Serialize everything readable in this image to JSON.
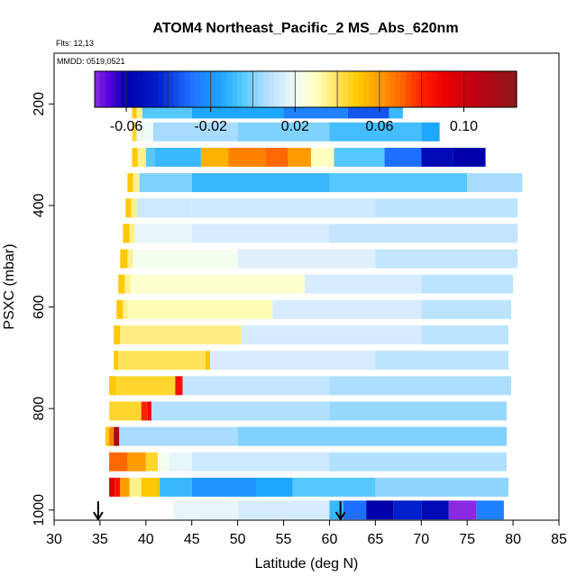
{
  "chart_data": {
    "type": "heatmap",
    "title": "ATOM4 Northeast_Pacific_2 MS_Abs_620nm",
    "subtitle_lines": [
      "Flts: 12,13",
      "MMDD: 0519,0521"
    ],
    "xlabel": "Latitude (deg N)",
    "ylabel": "PSXC (mbar)",
    "xlim": [
      30,
      85
    ],
    "ylim": [
      1020,
      100
    ],
    "xticks": [
      30,
      35,
      40,
      45,
      50,
      55,
      60,
      65,
      70,
      75,
      80,
      85
    ],
    "yticks": [
      200,
      400,
      600,
      800,
      1000
    ],
    "colorbar": {
      "range": [
        -0.075,
        0.125
      ],
      "ticks": [
        -0.06,
        -0.02,
        0.02,
        0.06,
        0.1
      ],
      "tick_labels": [
        "-0.06",
        "-0.02",
        "0.02",
        "0.06",
        "0.10"
      ],
      "major_bounds": [
        -0.075,
        -0.06,
        -0.04,
        -0.02,
        0.0,
        0.02,
        0.04,
        0.06,
        0.08,
        0.1,
        0.125
      ],
      "stops": [
        {
          "v": -0.075,
          "c": "#8a2be2"
        },
        {
          "v": -0.068,
          "c": "#5500dd"
        },
        {
          "v": -0.06,
          "c": "#0000aa"
        },
        {
          "v": -0.045,
          "c": "#0020cc"
        },
        {
          "v": -0.03,
          "c": "#1e6fff"
        },
        {
          "v": -0.015,
          "c": "#1ea7ff"
        },
        {
          "v": -0.005,
          "c": "#55c8ff"
        },
        {
          "v": 0.005,
          "c": "#a8dcff"
        },
        {
          "v": 0.015,
          "c": "#dcefff"
        },
        {
          "v": 0.022,
          "c": "#f5fff0"
        },
        {
          "v": 0.03,
          "c": "#ffffc0"
        },
        {
          "v": 0.04,
          "c": "#ffe45a"
        },
        {
          "v": 0.05,
          "c": "#ffc800"
        },
        {
          "v": 0.06,
          "c": "#ff9d00"
        },
        {
          "v": 0.07,
          "c": "#ff6800"
        },
        {
          "v": 0.08,
          "c": "#ff2200"
        },
        {
          "v": 0.09,
          "c": "#ee0000"
        },
        {
          "v": 0.105,
          "c": "#c00010"
        },
        {
          "v": 0.125,
          "c": "#8a1818"
        }
      ]
    },
    "arrows_lat": [
      34.8,
      61.2
    ],
    "rows": [
      {
        "p": 210,
        "segments": [
          [
            38.5,
            39.0,
            0.05
          ],
          [
            39.0,
            39.6,
            0.035
          ],
          [
            39.6,
            45,
            -0.005
          ],
          [
            45,
            55,
            -0.015
          ],
          [
            55,
            62,
            -0.025
          ],
          [
            62,
            66.5,
            -0.035
          ],
          [
            66.5,
            68,
            -0.01
          ]
        ]
      },
      {
        "p": 255,
        "segments": [
          [
            38.5,
            39.0,
            0.045
          ],
          [
            39.0,
            40.8,
            0.02
          ],
          [
            40.8,
            50,
            0.005
          ],
          [
            50,
            60,
            0.0
          ],
          [
            60,
            70,
            -0.008
          ],
          [
            70,
            72,
            -0.015
          ]
        ]
      },
      {
        "p": 305,
        "segments": [
          [
            38.5,
            39.1,
            0.05
          ],
          [
            39.1,
            40.0,
            0.035
          ],
          [
            40.0,
            41.0,
            -0.005
          ],
          [
            41.0,
            46.0,
            -0.01
          ],
          [
            46.0,
            49.0,
            0.055
          ],
          [
            49.0,
            53.0,
            0.065
          ],
          [
            53.0,
            55.5,
            0.07
          ],
          [
            55.5,
            58.0,
            0.06
          ],
          [
            58.0,
            60.5,
            0.03
          ],
          [
            60.5,
            66.0,
            -0.005
          ],
          [
            66.0,
            70.0,
            -0.03
          ],
          [
            70.0,
            73.5,
            -0.055
          ],
          [
            73.5,
            77,
            -0.06
          ]
        ]
      },
      {
        "p": 355,
        "segments": [
          [
            38.0,
            38.6,
            0.05
          ],
          [
            38.6,
            39.3,
            0.035
          ],
          [
            39.3,
            45,
            0.0
          ],
          [
            45,
            60,
            -0.01
          ],
          [
            60,
            75,
            -0.005
          ],
          [
            75,
            81,
            0.005
          ]
        ]
      },
      {
        "p": 405,
        "segments": [
          [
            37.8,
            38.4,
            0.05
          ],
          [
            38.4,
            39.0,
            0.035
          ],
          [
            39.0,
            45,
            0.012
          ],
          [
            45,
            65,
            0.012
          ],
          [
            65,
            80.5,
            0.009
          ]
        ]
      },
      {
        "p": 455,
        "segments": [
          [
            37.5,
            38.2,
            0.05
          ],
          [
            38.2,
            38.8,
            0.035
          ],
          [
            38.8,
            45,
            0.018
          ],
          [
            45,
            60,
            0.014
          ],
          [
            60,
            80.5,
            0.01
          ]
        ]
      },
      {
        "p": 505,
        "segments": [
          [
            37.2,
            38.0,
            0.05
          ],
          [
            38.0,
            38.6,
            0.035
          ],
          [
            38.6,
            50,
            0.022
          ],
          [
            50,
            65,
            0.016
          ],
          [
            65,
            80.5,
            0.01
          ]
        ]
      },
      {
        "p": 555,
        "segments": [
          [
            37.0,
            37.7,
            0.05
          ],
          [
            37.7,
            38.3,
            0.035
          ],
          [
            38.3,
            57.3,
            0.028
          ],
          [
            57.3,
            70,
            0.014
          ],
          [
            70,
            80.0,
            0.009
          ]
        ]
      },
      {
        "p": 605,
        "segments": [
          [
            36.8,
            37.5,
            0.05
          ],
          [
            37.5,
            38.0,
            0.035
          ],
          [
            38.0,
            53.8,
            0.031
          ],
          [
            53.8,
            70,
            0.014
          ],
          [
            70,
            79.8,
            0.009
          ]
        ]
      },
      {
        "p": 655,
        "segments": [
          [
            36.5,
            37.2,
            0.05
          ],
          [
            37.2,
            50.4,
            0.036
          ],
          [
            50.4,
            70,
            0.014
          ],
          [
            70,
            79.5,
            0.009
          ]
        ]
      },
      {
        "p": 705,
        "segments": [
          [
            36.5,
            37.0,
            0.05
          ],
          [
            37.0,
            46.5,
            0.04
          ],
          [
            46.5,
            47.0,
            0.05
          ],
          [
            47.0,
            65,
            0.014
          ],
          [
            65,
            79.5,
            0.009
          ]
        ]
      },
      {
        "p": 755,
        "segments": [
          [
            36.0,
            36.8,
            0.05
          ],
          [
            36.8,
            43.2,
            0.045
          ],
          [
            43.2,
            44.0,
            0.085
          ],
          [
            44.0,
            60,
            0.01
          ],
          [
            60,
            79.8,
            0.006
          ]
        ]
      },
      {
        "p": 805,
        "segments": [
          [
            36.0,
            39.5,
            0.045
          ],
          [
            39.5,
            40.2,
            0.08
          ],
          [
            40.2,
            40.6,
            0.09
          ],
          [
            40.6,
            60,
            0.007
          ],
          [
            60,
            79.3,
            0.003
          ]
        ]
      },
      {
        "p": 855,
        "segments": [
          [
            35.6,
            36.0,
            0.05
          ],
          [
            36.0,
            36.5,
            0.065
          ],
          [
            36.5,
            37.1,
            0.115
          ],
          [
            37.1,
            50,
            0.005
          ],
          [
            50,
            79.3,
            0.0
          ]
        ]
      },
      {
        "p": 905,
        "segments": [
          [
            36.0,
            38.0,
            0.07
          ],
          [
            38.0,
            40.0,
            0.06
          ],
          [
            40.0,
            41.3,
            0.045
          ],
          [
            41.3,
            42.5,
            0.022
          ],
          [
            42.5,
            45,
            0.018
          ],
          [
            45,
            60,
            0.012
          ],
          [
            60,
            79.3,
            0.007
          ]
        ]
      },
      {
        "p": 955,
        "segments": [
          [
            36.0,
            36.6,
            0.095
          ],
          [
            36.6,
            37.2,
            0.085
          ],
          [
            37.2,
            38.2,
            0.06
          ],
          [
            38.2,
            39.5,
            0.035
          ],
          [
            39.5,
            41.5,
            0.05
          ],
          [
            41.5,
            45,
            -0.01
          ],
          [
            45,
            52,
            -0.02
          ],
          [
            52,
            56,
            -0.015
          ],
          [
            56,
            65,
            -0.005
          ],
          [
            65,
            79.5,
            0.002
          ]
        ]
      },
      {
        "p": 1000,
        "segments": [
          [
            43.0,
            50,
            0.018
          ],
          [
            50,
            60,
            0.014
          ],
          [
            60,
            61.5,
            -0.01
          ],
          [
            61.5,
            64,
            -0.03
          ],
          [
            64,
            67,
            -0.06
          ],
          [
            67,
            70,
            -0.045
          ],
          [
            70,
            73,
            -0.055
          ],
          [
            73,
            76,
            -0.075
          ],
          [
            76,
            79,
            -0.025
          ]
        ]
      }
    ]
  }
}
